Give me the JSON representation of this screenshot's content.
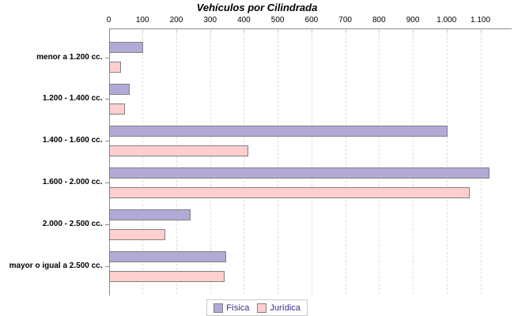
{
  "chart_data": {
    "type": "bar",
    "orientation": "horizontal",
    "title": "Vehículos por Cilindrada",
    "categories": [
      "menor a 1.200 cc.",
      "1.200 - 1.400 cc.",
      "1.400 - 1.600 cc.",
      "1.600 - 2.000 cc.",
      "2.000 - 2.500 cc.",
      "mayor o igual a 2.500 cc."
    ],
    "series": [
      {
        "name": "Física",
        "color": "#b3a9d6",
        "border_color": "#808080",
        "values": [
          100,
          60,
          1000,
          1125,
          240,
          345
        ]
      },
      {
        "name": "Jurídica",
        "color": "#ffcfcf",
        "border_color": "#808080",
        "values": [
          35,
          45,
          410,
          1065,
          165,
          340
        ]
      }
    ],
    "x_axis": {
      "min": 0,
      "max": 1100,
      "tick_interval": 100,
      "tick_labels": [
        "0",
        "100",
        "200",
        "300",
        "400",
        "500",
        "600",
        "700",
        "800",
        "900",
        "1.000",
        "1.100"
      ]
    },
    "xlabel": "",
    "ylabel": "",
    "grid": "vertical-dashed",
    "grid_color": "#dcdcdc",
    "legend_position": "bottom",
    "background_color": "#ffffff",
    "title_color": "#000000",
    "legend_text_color": "#3d2e85"
  }
}
